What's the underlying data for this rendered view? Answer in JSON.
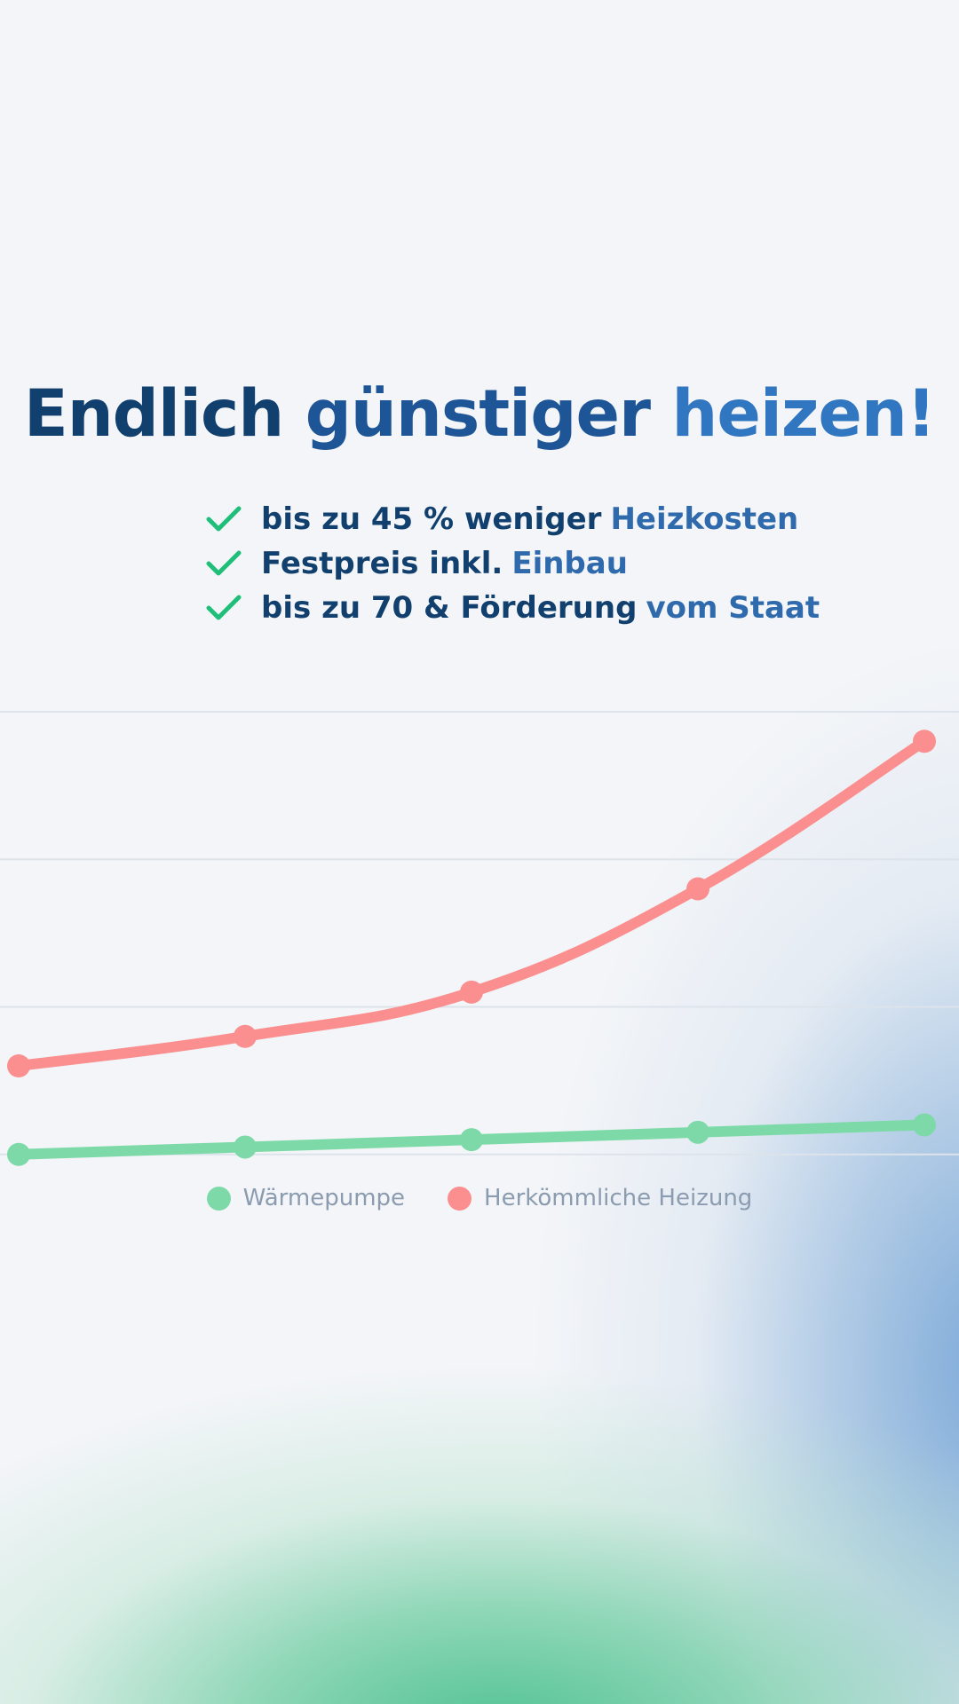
{
  "headline": {
    "word1": "Endlich",
    "word2": "günstiger",
    "word3": "heizen!"
  },
  "benefits": [
    {
      "text": "bis zu 45 % weniger",
      "accent": "Heizkosten",
      "icon": "checkmark-icon"
    },
    {
      "text": "Festpreis inkl.",
      "accent": "Einbau",
      "icon": "checkmark-icon"
    },
    {
      "text": "bis zu 70 & Förderung",
      "accent": "vom Staat",
      "icon": "checkmark-icon"
    }
  ],
  "colors": {
    "heading_dark": "#12406e",
    "heading_mid": "#1e5597",
    "heading_accent": "#3176c0",
    "check": "#1fbf7a",
    "waermepumpe": "#7ddaa8",
    "herkoemmlich": "#fb8f8f",
    "gridline": "#dde3ea",
    "legend_text": "#8b9bb0"
  },
  "chart_data": {
    "type": "line",
    "title": "",
    "xlabel": "",
    "ylabel": "",
    "x": [
      1,
      2,
      3,
      4,
      5
    ],
    "ylim": [
      0,
      4
    ],
    "grid": true,
    "legend_position": "bottom-center",
    "series": [
      {
        "name": "Wärmepumpe",
        "color": "#7ddaa8",
        "values": [
          1.0,
          1.05,
          1.1,
          1.15,
          1.2
        ]
      },
      {
        "name": "Herkömmliche Heizung",
        "color": "#fb8f8f",
        "values": [
          1.6,
          1.8,
          2.1,
          2.8,
          3.8
        ]
      }
    ]
  }
}
